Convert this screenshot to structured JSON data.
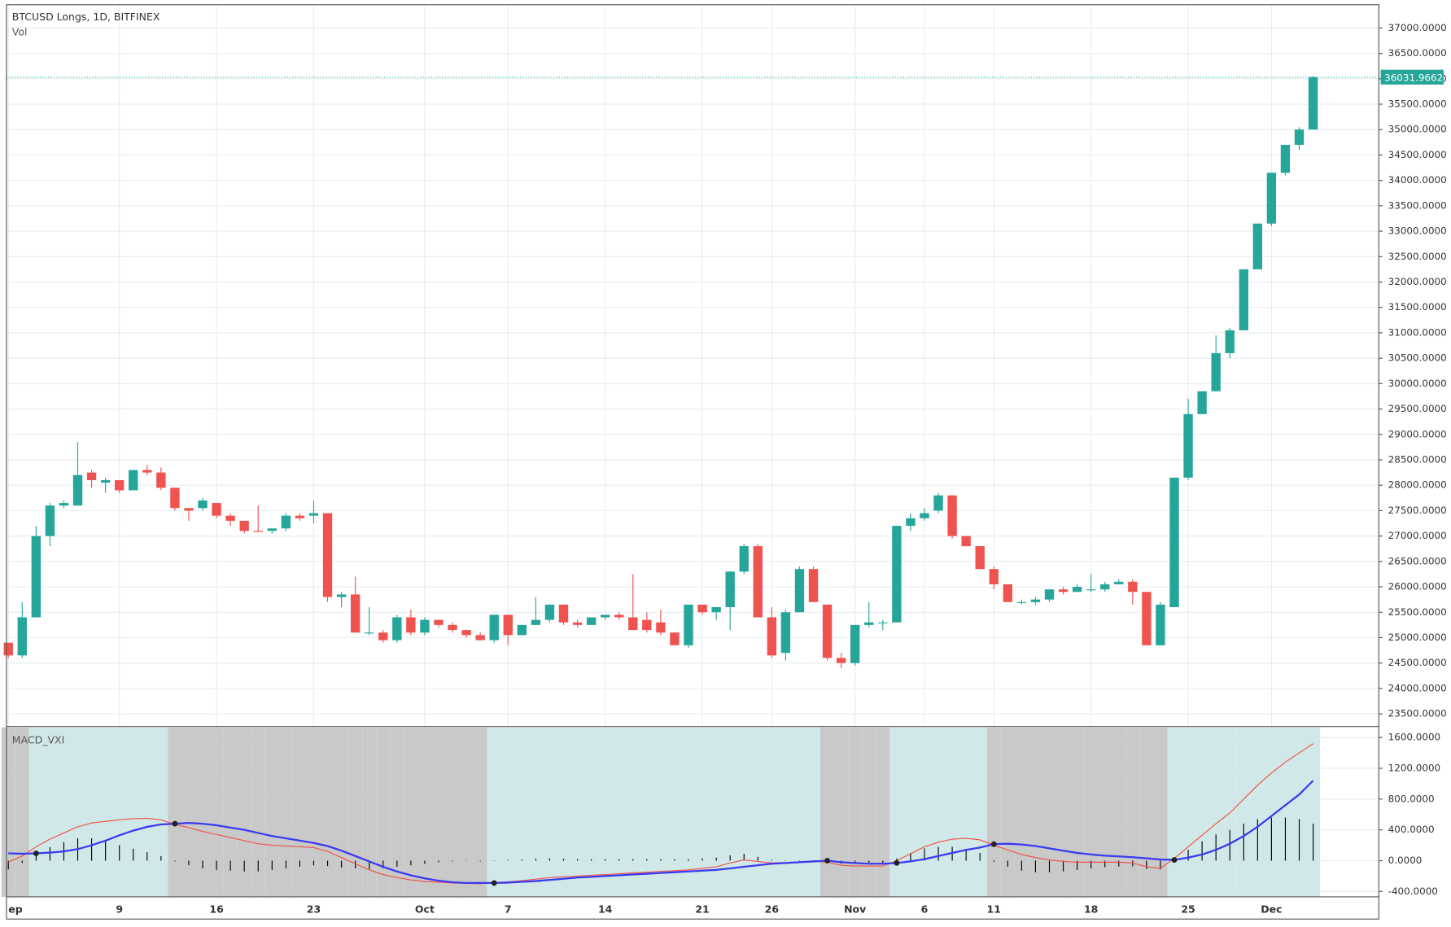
{
  "chart_data": [
    {
      "type": "candlestick",
      "title": "BTCUSD Longs, 1D, BITFINEX",
      "subtitle": "Vol",
      "categories": [
        "ep",
        null,
        null,
        null,
        null,
        null,
        null,
        null,
        "9",
        null,
        null,
        null,
        null,
        null,
        null,
        "16",
        null,
        null,
        null,
        null,
        null,
        null,
        "23",
        null,
        null,
        null,
        null,
        null,
        null,
        null,
        "Oct",
        null,
        null,
        null,
        null,
        null,
        "7",
        null,
        null,
        null,
        null,
        null,
        null,
        "14",
        null,
        null,
        null,
        null,
        null,
        null,
        "21",
        null,
        null,
        null,
        null,
        "26",
        null,
        null,
        null,
        null,
        null,
        "Nov",
        null,
        null,
        null,
        null,
        "6",
        null,
        null,
        null,
        null,
        "11",
        null,
        null,
        null,
        null,
        null,
        null,
        "18",
        null,
        null,
        null,
        null,
        null,
        null,
        "25",
        null,
        null,
        null,
        null,
        null,
        "Dec",
        null,
        null,
        null
      ],
      "open": [
        24900,
        24650,
        25400,
        27000,
        27600,
        27600,
        28250,
        28050,
        28100,
        27900,
        28300,
        28250,
        27950,
        27550,
        27550,
        27650,
        27400,
        27300,
        27100,
        27100,
        27150,
        27400,
        27400,
        27450,
        25800,
        25850,
        25100,
        25100,
        24950,
        25400,
        25100,
        25350,
        25250,
        25150,
        25050,
        24950,
        25450,
        25050,
        25250,
        25350,
        25650,
        25300,
        25250,
        25400,
        25450,
        25400,
        25350,
        25300,
        25100,
        24850,
        25650,
        25500,
        25600,
        26300,
        26800,
        25400,
        24700,
        25500,
        26350,
        25650,
        24600,
        24500,
        25250,
        25300,
        25300,
        27200,
        27350,
        27500,
        27800,
        27000,
        26800,
        26350,
        26050,
        25700,
        25700,
        25750,
        25950,
        25900,
        25950,
        25950,
        26050,
        26100,
        25900,
        24850,
        25600,
        28150,
        29400,
        29850,
        30600,
        31050,
        32250,
        33150,
        34150,
        34700,
        35000
      ],
      "high": [
        24900,
        25700,
        27200,
        27650,
        27700,
        28850,
        28300,
        28150,
        28100,
        28300,
        28400,
        28350,
        27950,
        27550,
        27750,
        27650,
        27450,
        27300,
        27600,
        27150,
        27450,
        27450,
        27700,
        27450,
        25900,
        26200,
        25600,
        25150,
        25450,
        25550,
        25400,
        25350,
        25300,
        25150,
        25100,
        25450,
        25450,
        25250,
        25800,
        25650,
        25650,
        25350,
        25400,
        25450,
        25500,
        26250,
        25500,
        25550,
        25100,
        25650,
        25650,
        25600,
        26300,
        26850,
        26850,
        25600,
        25550,
        26400,
        26400,
        25650,
        24700,
        25250,
        25700,
        25350,
        27200,
        27450,
        27550,
        27850,
        27800,
        27000,
        26800,
        26400,
        26050,
        25750,
        25800,
        25950,
        26000,
        26050,
        26250,
        26100,
        26150,
        26150,
        25900,
        25700,
        28150,
        29700,
        29850,
        30950,
        31100,
        32250,
        33150,
        34150,
        34700,
        35050,
        36050
      ],
      "low": [
        24600,
        24600,
        25400,
        26800,
        27550,
        27600,
        27950,
        27850,
        27850,
        27900,
        28200,
        27900,
        27500,
        27300,
        27500,
        27350,
        27200,
        27050,
        27080,
        27050,
        27100,
        27300,
        27250,
        25700,
        25600,
        25100,
        25050,
        24900,
        24900,
        25050,
        25050,
        25200,
        25100,
        25000,
        24950,
        24900,
        24850,
        25050,
        25250,
        25300,
        25250,
        25200,
        25250,
        25350,
        25350,
        25150,
        25100,
        25050,
        24850,
        24800,
        25450,
        25350,
        25150,
        26250,
        25400,
        24600,
        24550,
        25500,
        25700,
        24550,
        24400,
        24450,
        25200,
        25150,
        25300,
        27100,
        27300,
        27450,
        26950,
        26800,
        26350,
        25950,
        25700,
        25650,
        25650,
        25700,
        25850,
        25900,
        25900,
        25900,
        26050,
        25650,
        24850,
        24850,
        25600,
        28100,
        29400,
        29850,
        30500,
        31050,
        32250,
        33100,
        34100,
        34600,
        35000
      ],
      "close": [
        24650,
        25400,
        27000,
        27600,
        27650,
        28200,
        28100,
        28100,
        27900,
        28300,
        28250,
        27950,
        27550,
        27500,
        27700,
        27400,
        27300,
        27100,
        27080,
        27150,
        27400,
        27350,
        27450,
        25800,
        25850,
        25100,
        25100,
        24950,
        25400,
        25100,
        25350,
        25250,
        25150,
        25050,
        24950,
        25450,
        25050,
        25250,
        25350,
        25650,
        25300,
        25250,
        25400,
        25450,
        25400,
        25150,
        25150,
        25100,
        24850,
        25650,
        25500,
        25600,
        26300,
        26800,
        25400,
        24650,
        25500,
        26350,
        25700,
        24600,
        24500,
        25250,
        25300,
        25300,
        27200,
        27350,
        27450,
        27800,
        27000,
        26800,
        26350,
        26050,
        25700,
        25700,
        25750,
        25950,
        25900,
        26000,
        25950,
        26050,
        26100,
        25900,
        24850,
        25650,
        28150,
        29400,
        29850,
        30600,
        31050,
        32250,
        33150,
        34150,
        34700,
        35000,
        36031.9662
      ],
      "up_color": "#26a69a",
      "down_color": "#ef5350",
      "last_price": 36031.9662,
      "ylim": [
        23250,
        37440
      ],
      "yticks": [
        {
          "value": 23500,
          "label": "23500.0000"
        },
        {
          "value": 24000,
          "label": "24000.0000"
        },
        {
          "value": 24500,
          "label": "24500.0000"
        },
        {
          "value": 25000,
          "label": "25000.0000"
        },
        {
          "value": 25500,
          "label": "25500.0000"
        },
        {
          "value": 26000,
          "label": "26000.0000"
        },
        {
          "value": 26500,
          "label": "26500.0000"
        },
        {
          "value": 27000,
          "label": "27000.0000"
        },
        {
          "value": 27500,
          "label": "27500.0000"
        },
        {
          "value": 28000,
          "label": "28000.0000"
        },
        {
          "value": 28500,
          "label": "28500.0000"
        },
        {
          "value": 29000,
          "label": "29000.0000"
        },
        {
          "value": 29500,
          "label": "29500.0000"
        },
        {
          "value": 30000,
          "label": "30000.0000"
        },
        {
          "value": 30500,
          "label": "30500.0000"
        },
        {
          "value": 31000,
          "label": "31000.0000"
        },
        {
          "value": 31500,
          "label": "31500.0000"
        },
        {
          "value": 32000,
          "label": "32000.0000"
        },
        {
          "value": 32500,
          "label": "32500.0000"
        },
        {
          "value": 33000,
          "label": "33000.0000"
        },
        {
          "value": 33500,
          "label": "33500.0000"
        },
        {
          "value": 34000,
          "label": "34000.0000"
        },
        {
          "value": 34500,
          "label": "34500.0000"
        },
        {
          "value": 35000,
          "label": "35000.0000"
        },
        {
          "value": 35500,
          "label": "35500.0000"
        },
        {
          "value": 36000,
          "label": "36000.0000"
        },
        {
          "value": 36500,
          "label": "36500.0000"
        },
        {
          "value": 37000,
          "label": "37000.0000"
        }
      ],
      "grid": true
    },
    {
      "type": "macd",
      "title": "MACD_VXI",
      "series": [
        {
          "color": "#3a3af0",
          "values": [
            95,
            90,
            95,
            105,
            120,
            150,
            200,
            260,
            330,
            390,
            440,
            470,
            480,
            490,
            480,
            460,
            430,
            400,
            360,
            320,
            290,
            260,
            230,
            190,
            130,
            60,
            -10,
            -80,
            -140,
            -190,
            -230,
            -260,
            -280,
            -290,
            -290,
            -290,
            -285,
            -275,
            -265,
            -250,
            -235,
            -220,
            -210,
            -200,
            -190,
            -180,
            -170,
            -160,
            -150,
            -140,
            -130,
            -120,
            -100,
            -80,
            -60,
            -40,
            -30,
            -20,
            -10,
            0,
            -20,
            -30,
            -40,
            -40,
            -30,
            -10,
            20,
            60,
            100,
            140,
            170,
            215,
            220,
            210,
            190,
            160,
            130,
            100,
            80,
            65,
            55,
            45,
            30,
            15,
            10,
            40,
            80,
            140,
            220,
            320,
            440,
            580,
            720,
            860,
            1040
          ]
        },
        {
          "color": "#f0504a",
          "values": [
            -20,
            60,
            180,
            280,
            360,
            440,
            490,
            510,
            530,
            545,
            550,
            530,
            470,
            430,
            380,
            340,
            300,
            260,
            220,
            200,
            190,
            180,
            170,
            120,
            40,
            -40,
            -120,
            -180,
            -220,
            -250,
            -270,
            -280,
            -290,
            -295,
            -300,
            -285,
            -275,
            -260,
            -240,
            -220,
            -210,
            -200,
            -190,
            -180,
            -170,
            -160,
            -150,
            -140,
            -130,
            -120,
            -100,
            -80,
            -30,
            10,
            -10,
            -30,
            -25,
            -15,
            -5,
            -20,
            -60,
            -70,
            -70,
            -70,
            0,
            90,
            180,
            240,
            280,
            290,
            270,
            200,
            140,
            80,
            40,
            10,
            -10,
            -20,
            -20,
            -20,
            -20,
            -30,
            -80,
            -100,
            30,
            180,
            330,
            480,
            620,
            800,
            980,
            1140,
            1280,
            1400,
            1520
          ]
        },
        {
          "color": "#000000",
          "values": [
            -115,
            -30,
            85,
            175,
            240,
            290,
            290,
            250,
            200,
            155,
            110,
            60,
            -10,
            -60,
            -100,
            -120,
            -130,
            -140,
            -140,
            -120,
            -100,
            -80,
            -60,
            -70,
            -90,
            -100,
            -110,
            -100,
            -80,
            -60,
            -40,
            -20,
            -10,
            -5,
            -10,
            5,
            10,
            15,
            25,
            30,
            25,
            20,
            20,
            20,
            20,
            20,
            20,
            20,
            20,
            20,
            30,
            40,
            70,
            90,
            50,
            10,
            5,
            5,
            5,
            -20,
            -40,
            -40,
            -30,
            -30,
            30,
            100,
            160,
            180,
            180,
            150,
            100,
            -15,
            -80,
            -130,
            -150,
            -150,
            -140,
            -120,
            -100,
            -85,
            -75,
            -75,
            -110,
            -115,
            20,
            140,
            250,
            340,
            400,
            480,
            540,
            560,
            560,
            540,
            480
          ]
        }
      ],
      "zone_colors": [
        "#c9c9c9",
        "#d0e8e8"
      ],
      "ylim": [
        -470,
        1730
      ],
      "yticks": [
        {
          "value": -400,
          "label": "-400.0000"
        },
        {
          "value": 0,
          "label": "0.0000"
        },
        {
          "value": 400,
          "label": "400.0000"
        },
        {
          "value": 800,
          "label": "800.0000"
        },
        {
          "value": 1200,
          "label": "1200.0000"
        },
        {
          "value": 1600,
          "label": "1600.0000"
        }
      ],
      "grid": true
    }
  ]
}
